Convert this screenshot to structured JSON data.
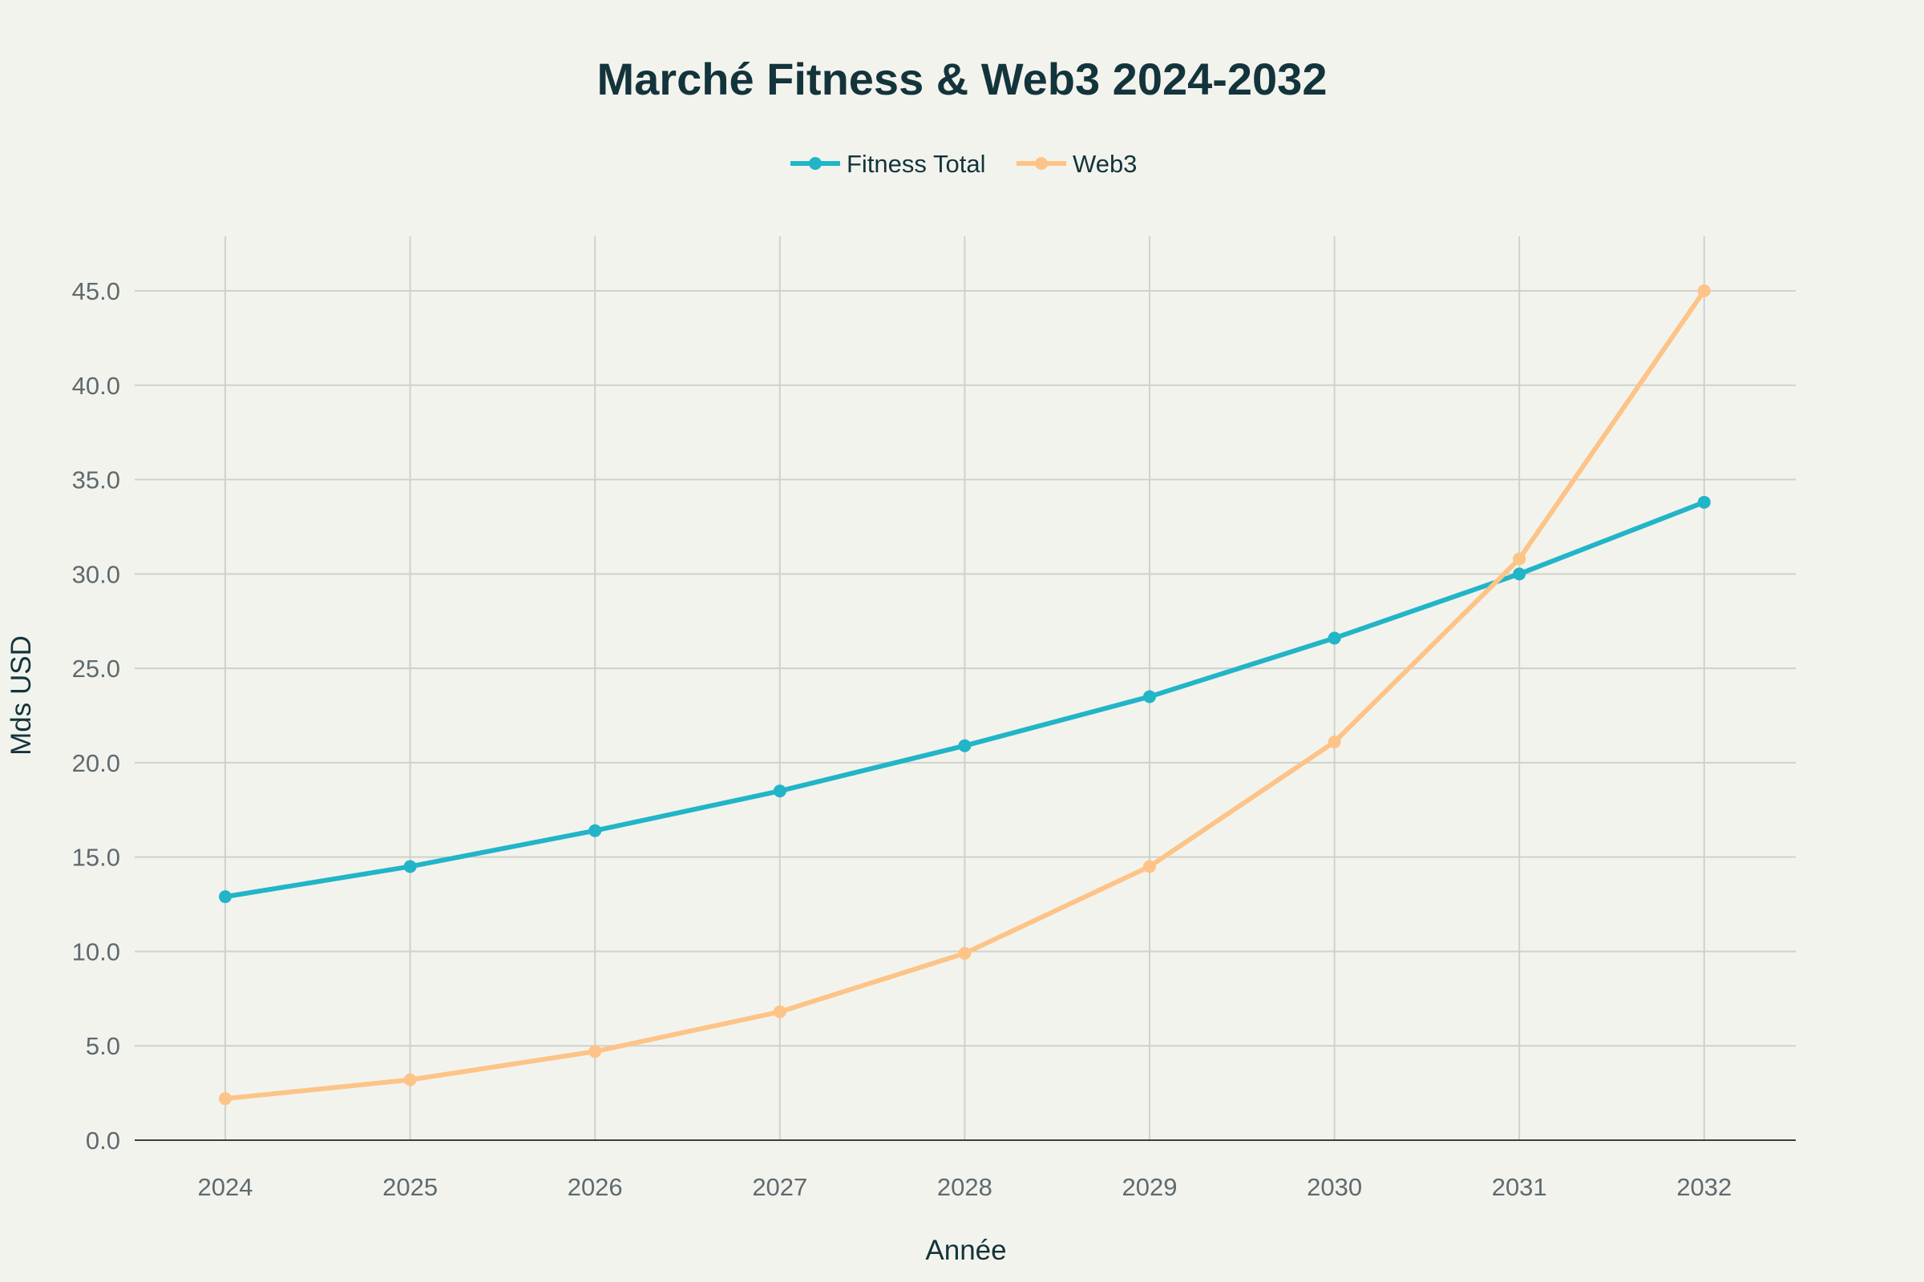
{
  "chart_data": {
    "type": "line",
    "title": "Marché Fitness & Web3 2024-2032",
    "xlabel": "Année",
    "ylabel": "Mds USD",
    "x": [
      2024,
      2025,
      2026,
      2027,
      2028,
      2029,
      2030,
      2031,
      2032
    ],
    "x_tick_labels": [
      "2024",
      "2025",
      "2026",
      "2027",
      "2028",
      "2029",
      "2030",
      "2031",
      "2032"
    ],
    "y_tick_labels": [
      "0.0",
      "5.0",
      "10.0",
      "15.0",
      "20.0",
      "25.0",
      "30.0",
      "35.0",
      "40.0",
      "45.0"
    ],
    "ylim": [
      0,
      48
    ],
    "grid": true,
    "legend_placement": "top-center",
    "series": [
      {
        "name": "Fitness Total",
        "color": "#21b5c7",
        "values": [
          12.9,
          14.5,
          16.4,
          18.5,
          20.9,
          23.5,
          26.6,
          30.0,
          33.8
        ]
      },
      {
        "name": "Web3",
        "color": "#fdc487",
        "values": [
          2.2,
          3.2,
          4.7,
          6.8,
          9.9,
          14.5,
          21.1,
          30.8,
          45.0
        ]
      }
    ]
  }
}
